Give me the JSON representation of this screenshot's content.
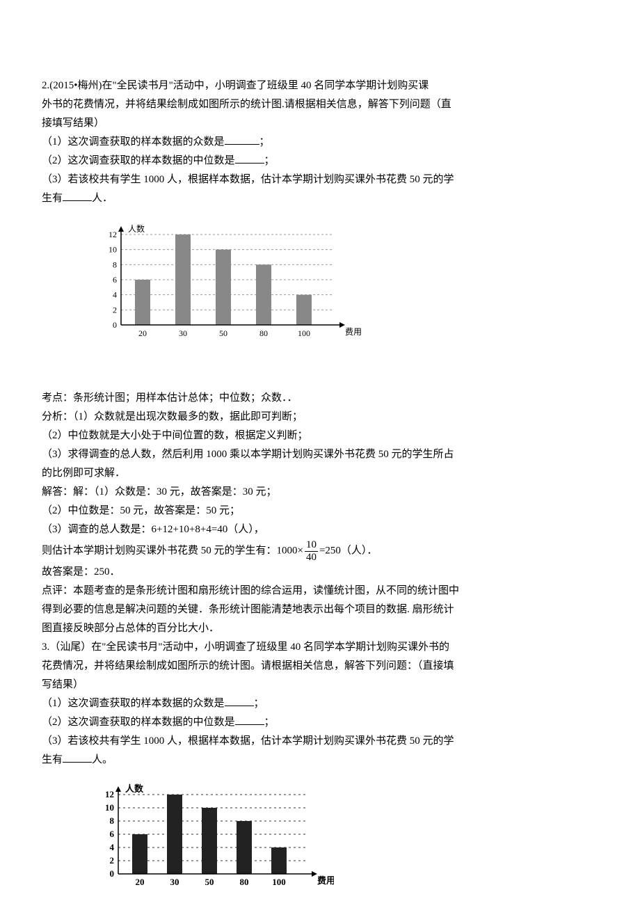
{
  "q2": {
    "num": "2.",
    "src": "(2015•梅州)",
    "intro1": "在\"全民读书月\"活动中，小明调查了班级里 40 名同学本学期计划购买课",
    "intro2": "外书的花费情况，并将结果绘制成如图所示的统计图.请根据相关信息，解答下列问题（直",
    "intro3": "接填写结果）",
    "p1a": "（1）这次调查获取的样本数据的众数是",
    "p1b": "；",
    "p2a": "（2）这次调查获取的样本数据的中位数是",
    "p2b": "；",
    "p3a": "（3）若该校共有学生 1000 人，根据样本数据，估计本学期计划购买课外书花费 50 元的学",
    "p3b": "生有",
    "p3c": "人．"
  },
  "ans2": {
    "kd_l": "考点：",
    "kd": "条形统计图；用样本估计总体；中位数；众数．．",
    "fx_l": "分析：",
    "fx1": "（1）众数就是出现次数最多的数，据此即可判断；",
    "fx2": "（2）中位数就是大小处于中间位置的数，根据定义判断；",
    "fx3": "（3）求得调查的总人数，然后利用 1000 乘以本学期计划购买课外书花费 50 元的学生所占",
    "fx4": "的比例即可求解．",
    "jd_l": "解答：",
    "jd1": "解：（1）众数是：30 元，故答案是：30 元；",
    "jd2": "（2）中位数是：50 元，故答案是：50 元；",
    "jd3": "（3）调查的总人数是：6+12+10+8+4=40（人），",
    "jd4a": "则估计本学期计划购买课外书花费 50 元的学生有：1000×",
    "fnum": "10",
    "fden": "40",
    "jd4b": "=250（人）．",
    "jd5": "故答案是：250．",
    "dp_l": "点评：",
    "dp1": "本题考查的是条形统计图和扇形统计图的综合运用，读懂统计图，从不同的统计图中",
    "dp2": "得到必要的信息是解决问题的关键．条形统计图能清楚地表示出每个项目的数据. 扇形统计",
    "dp3": "图直接反映部分占总体的百分比大小．"
  },
  "q3": {
    "num": "3.",
    "src": "（汕尾）",
    "intro1": "在\"全民读书月\"活动中，小明调查了班级里 40 名同学本学期计划购买课外书的",
    "intro2": "花费情况，并将结果绘制成如图所示的统计图。请根据相关信息，解答下列问题：（直接填",
    "intro3": "写结果）",
    "p1a": "（1）这次调查获取的样本数据的众数是",
    "p1b": "；",
    "p2a": "（2）这次调查获取的样本数据的中位数是",
    "p2b": "；",
    "p3a": "（3）若该校共有学生 1000 人，根据样本数据，估计本学期计划购买课外书花费 50 元的学",
    "p3b": "生有",
    "p3c": "人。"
  },
  "chart": {
    "ylabel": "人数",
    "xlabel": "费用/元",
    "categories": [
      "20",
      "30",
      "50",
      "80",
      "100"
    ],
    "values": [
      6,
      12,
      10,
      8,
      4
    ],
    "yticks": [
      0,
      2,
      4,
      6,
      8,
      10,
      12
    ],
    "bar_fill": "#888888",
    "grid_color": "#999999",
    "axis_color": "#000000",
    "font_size": 12
  },
  "chart2": {
    "ylabel": "人数",
    "xlabel": "费用/元",
    "categories": [
      "20",
      "30",
      "50",
      "80",
      "100"
    ],
    "values": [
      6,
      12,
      10,
      8,
      4
    ],
    "yticks": [
      0,
      2,
      4,
      6,
      8,
      10,
      12
    ],
    "bar_fill": "#222222",
    "grid_color": "#333333",
    "axis_color": "#000000",
    "font_size": 13,
    "bold": true
  }
}
